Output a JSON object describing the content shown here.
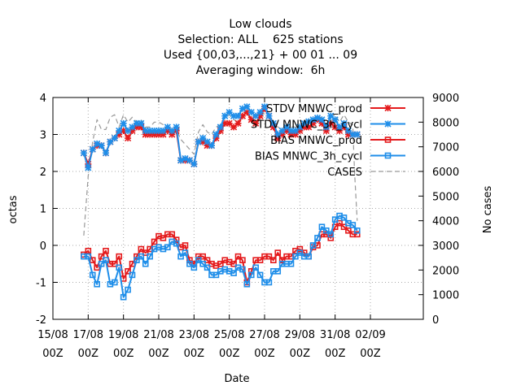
{
  "chart_data": {
    "type": "line",
    "title_lines": [
      "Low clouds",
      "Selection: ALL    625 stations",
      "Used {00,03,...,21} + 00 01 ... 09",
      "Averaging window:  6h"
    ],
    "xlabel": "Date",
    "ylabel": "octas",
    "y2label": "No cases",
    "xlim": [
      0,
      21
    ],
    "ylim": [
      -2,
      4
    ],
    "y2lim": [
      0,
      9000
    ],
    "x_ticks": [
      {
        "x": 0,
        "l1": "15/08",
        "l2": "00Z"
      },
      {
        "x": 2,
        "l1": "17/08",
        "l2": "00Z"
      },
      {
        "x": 4,
        "l1": "19/08",
        "l2": "00Z"
      },
      {
        "x": 6,
        "l1": "21/08",
        "l2": "00Z"
      },
      {
        "x": 8,
        "l1": "23/08",
        "l2": "00Z"
      },
      {
        "x": 10,
        "l1": "25/08",
        "l2": "00Z"
      },
      {
        "x": 12,
        "l1": "27/08",
        "l2": "00Z"
      },
      {
        "x": 14,
        "l1": "29/08",
        "l2": "00Z"
      },
      {
        "x": 16,
        "l1": "31/08",
        "l2": "00Z"
      },
      {
        "x": 18,
        "l1": "02/09",
        "l2": "00Z"
      }
    ],
    "y_ticks": [
      -2,
      -1,
      0,
      1,
      2,
      3,
      4
    ],
    "y2_ticks": [
      0,
      1000,
      2000,
      3000,
      4000,
      5000,
      6000,
      7000,
      8000,
      9000
    ],
    "grid": true,
    "legend_position": "top-right",
    "x": [
      1.75,
      2.0,
      2.25,
      2.5,
      2.75,
      3.0,
      3.25,
      3.5,
      3.75,
      4.0,
      4.25,
      4.5,
      4.75,
      5.0,
      5.25,
      5.5,
      5.75,
      6.0,
      6.25,
      6.5,
      6.75,
      7.0,
      7.25,
      7.5,
      7.75,
      8.0,
      8.25,
      8.5,
      8.75,
      9.0,
      9.25,
      9.5,
      9.75,
      10.0,
      10.25,
      10.5,
      10.75,
      11.0,
      11.25,
      11.5,
      11.75,
      12.0,
      12.25,
      12.5,
      12.75,
      13.0,
      13.25,
      13.5,
      13.75,
      14.0,
      14.25,
      14.5,
      14.75,
      15.0,
      15.25,
      15.5,
      15.75,
      16.0,
      16.25,
      16.5,
      16.75,
      17.0,
      17.25
    ],
    "series": [
      {
        "name": "STDV MNWC_prod",
        "color": "#e41a1c",
        "marker": "x",
        "values": [
          2.5,
          2.2,
          2.6,
          2.7,
          2.7,
          2.5,
          2.8,
          2.9,
          3.0,
          3.1,
          2.9,
          3.1,
          3.2,
          3.2,
          3.0,
          3.0,
          3.0,
          3.0,
          3.0,
          3.1,
          3.0,
          3.1,
          2.3,
          2.3,
          2.3,
          2.2,
          2.8,
          2.8,
          2.7,
          2.7,
          2.9,
          3.1,
          3.3,
          3.3,
          3.2,
          3.3,
          3.5,
          3.6,
          3.4,
          3.3,
          3.5,
          3.7,
          3.5,
          3.2,
          2.9,
          3.0,
          3.1,
          3.0,
          3.0,
          3.1,
          3.2,
          3.2,
          3.3,
          3.4,
          3.3,
          3.1,
          3.3,
          3.2,
          3.1,
          3.2,
          3.0,
          3.0,
          3.0
        ]
      },
      {
        "name": "STDV MNWC_3h_cycl",
        "color": "#1f8ee9",
        "marker": "x",
        "values": [
          2.5,
          2.1,
          2.6,
          2.75,
          2.7,
          2.5,
          2.8,
          2.9,
          3.1,
          3.3,
          3.1,
          3.2,
          3.3,
          3.3,
          3.1,
          3.1,
          3.1,
          3.1,
          3.1,
          3.2,
          3.1,
          3.2,
          2.3,
          2.35,
          2.3,
          2.2,
          2.8,
          2.9,
          2.8,
          2.7,
          3.0,
          3.2,
          3.5,
          3.6,
          3.5,
          3.5,
          3.7,
          3.75,
          3.6,
          3.5,
          3.6,
          3.75,
          3.5,
          3.3,
          3.0,
          3.1,
          3.2,
          3.1,
          3.1,
          3.2,
          3.3,
          3.35,
          3.4,
          3.45,
          3.4,
          3.2,
          3.5,
          3.4,
          3.2,
          3.3,
          3.1,
          3.0,
          3.0
        ]
      },
      {
        "name": "BIAS MNWC_prod",
        "color": "#e41a1c",
        "marker": "square",
        "values": [
          -0.25,
          -0.15,
          -0.4,
          -0.6,
          -0.3,
          -0.15,
          -0.5,
          -0.5,
          -0.3,
          -0.9,
          -0.7,
          -0.5,
          -0.3,
          -0.1,
          -0.2,
          -0.1,
          0.1,
          0.25,
          0.2,
          0.3,
          0.3,
          0.15,
          -0.05,
          0.0,
          -0.4,
          -0.5,
          -0.3,
          -0.3,
          -0.4,
          -0.5,
          -0.55,
          -0.5,
          -0.4,
          -0.45,
          -0.5,
          -0.3,
          -0.4,
          -1.0,
          -0.7,
          -0.4,
          -0.4,
          -0.3,
          -0.3,
          -0.4,
          -0.2,
          -0.4,
          -0.3,
          -0.3,
          -0.15,
          -0.1,
          -0.2,
          -0.3,
          -0.05,
          0.0,
          0.3,
          0.3,
          0.2,
          0.5,
          0.6,
          0.5,
          0.4,
          0.3,
          0.3
        ]
      },
      {
        "name": "BIAS MNWC_3h_cycl",
        "color": "#1f8ee9",
        "marker": "square",
        "values": [
          -0.3,
          -0.3,
          -0.8,
          -1.05,
          -0.5,
          -0.4,
          -1.05,
          -1.0,
          -0.6,
          -1.4,
          -1.2,
          -0.8,
          -0.4,
          -0.3,
          -0.5,
          -0.3,
          -0.1,
          -0.05,
          -0.1,
          -0.05,
          0.1,
          0.05,
          -0.3,
          -0.2,
          -0.5,
          -0.6,
          -0.4,
          -0.5,
          -0.6,
          -0.8,
          -0.8,
          -0.7,
          -0.65,
          -0.7,
          -0.75,
          -0.6,
          -0.65,
          -1.05,
          -0.8,
          -0.6,
          -0.8,
          -1.0,
          -1.0,
          -0.7,
          -0.7,
          -0.5,
          -0.5,
          -0.5,
          -0.3,
          -0.2,
          -0.3,
          -0.3,
          0.0,
          0.2,
          0.5,
          0.4,
          0.3,
          0.7,
          0.8,
          0.75,
          0.6,
          0.55,
          0.4
        ]
      },
      {
        "name": "CASES",
        "color": "#999999",
        "marker": "none",
        "dash": "6,4",
        "x": [
          1.75,
          2.0,
          2.25,
          2.5,
          2.75,
          3.0,
          3.25,
          3.5,
          3.75,
          4.0,
          4.25,
          4.5,
          4.75,
          5.0,
          5.25,
          5.5,
          5.75,
          6.0,
          6.25,
          6.5,
          6.75,
          7.0,
          7.25,
          7.5,
          7.75,
          8.0,
          8.25,
          8.5,
          8.75,
          9.0,
          9.25,
          9.5,
          9.75,
          10.0,
          10.25,
          10.5,
          10.75,
          11.0,
          11.25,
          11.5,
          11.75,
          12.0,
          12.25,
          12.5,
          12.75,
          13.0,
          13.25,
          13.5,
          13.75,
          14.0,
          14.25,
          14.5,
          14.75,
          15.0,
          15.25,
          15.5,
          15.75,
          16.0,
          16.25,
          16.5,
          16.75,
          17.0,
          17.1,
          17.25
        ],
        "values": [
          3400,
          5800,
          7200,
          8100,
          7700,
          7700,
          8200,
          8300,
          7800,
          8300,
          8000,
          8200,
          8000,
          8100,
          7800,
          7800,
          8000,
          8000,
          7900,
          7800,
          7600,
          7700,
          7300,
          7100,
          6900,
          6700,
          7600,
          7900,
          7600,
          7500,
          7800,
          7900,
          8200,
          8300,
          8100,
          8000,
          8300,
          8400,
          8200,
          7800,
          8200,
          8400,
          8300,
          8000,
          7800,
          7700,
          7800,
          7800,
          7800,
          7700,
          7900,
          7900,
          8100,
          8200,
          8200,
          7800,
          8200,
          8300,
          8000,
          8300,
          8000,
          7900,
          6000,
          4000
        ]
      }
    ]
  }
}
